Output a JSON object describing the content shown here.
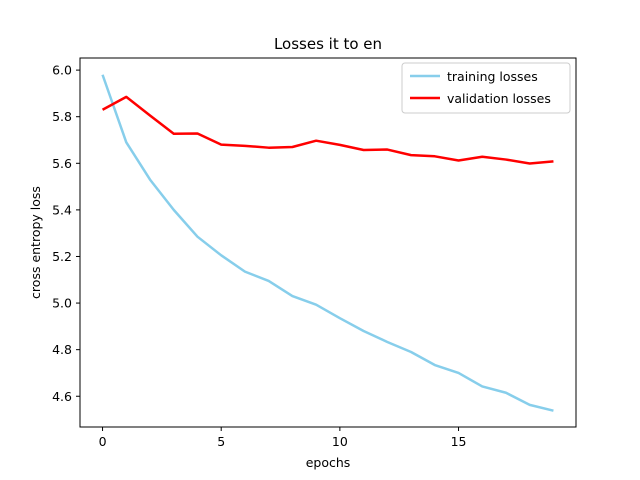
{
  "chart_data": {
    "type": "line",
    "title": "Losses it to en",
    "xlabel": "epochs",
    "ylabel": "cross entropy loss",
    "xlim": [
      -0.95,
      19.95
    ],
    "ylim": [
      4.468,
      6.052
    ],
    "xticks": [
      0,
      5,
      10,
      15
    ],
    "yticks": [
      4.6,
      4.8,
      5.0,
      5.2,
      5.4,
      5.6,
      5.8,
      6.0
    ],
    "xtick_labels": [
      "0",
      "5",
      "10",
      "15"
    ],
    "ytick_labels": [
      "4.6",
      "4.8",
      "5.0",
      "5.2",
      "5.4",
      "5.6",
      "5.8",
      "6.0"
    ],
    "grid": false,
    "legend_position": "top-right",
    "x": [
      0,
      1,
      2,
      3,
      4,
      5,
      6,
      7,
      8,
      9,
      10,
      11,
      12,
      13,
      14,
      15,
      16,
      17,
      18,
      19
    ],
    "series": [
      {
        "name": "training losses",
        "color": "#87ceeb",
        "values": [
          5.98,
          5.69,
          5.53,
          5.4,
          5.285,
          5.205,
          5.135,
          5.095,
          5.03,
          4.993,
          4.935,
          4.88,
          4.833,
          4.79,
          4.734,
          4.7,
          4.642,
          4.615,
          4.563,
          4.538
        ]
      },
      {
        "name": "validation losses",
        "color": "#ff0000",
        "values": [
          5.83,
          5.885,
          5.805,
          5.727,
          5.728,
          5.68,
          5.675,
          5.667,
          5.67,
          5.697,
          5.679,
          5.657,
          5.659,
          5.635,
          5.63,
          5.612,
          5.628,
          5.616,
          5.599,
          5.608
        ]
      }
    ]
  }
}
